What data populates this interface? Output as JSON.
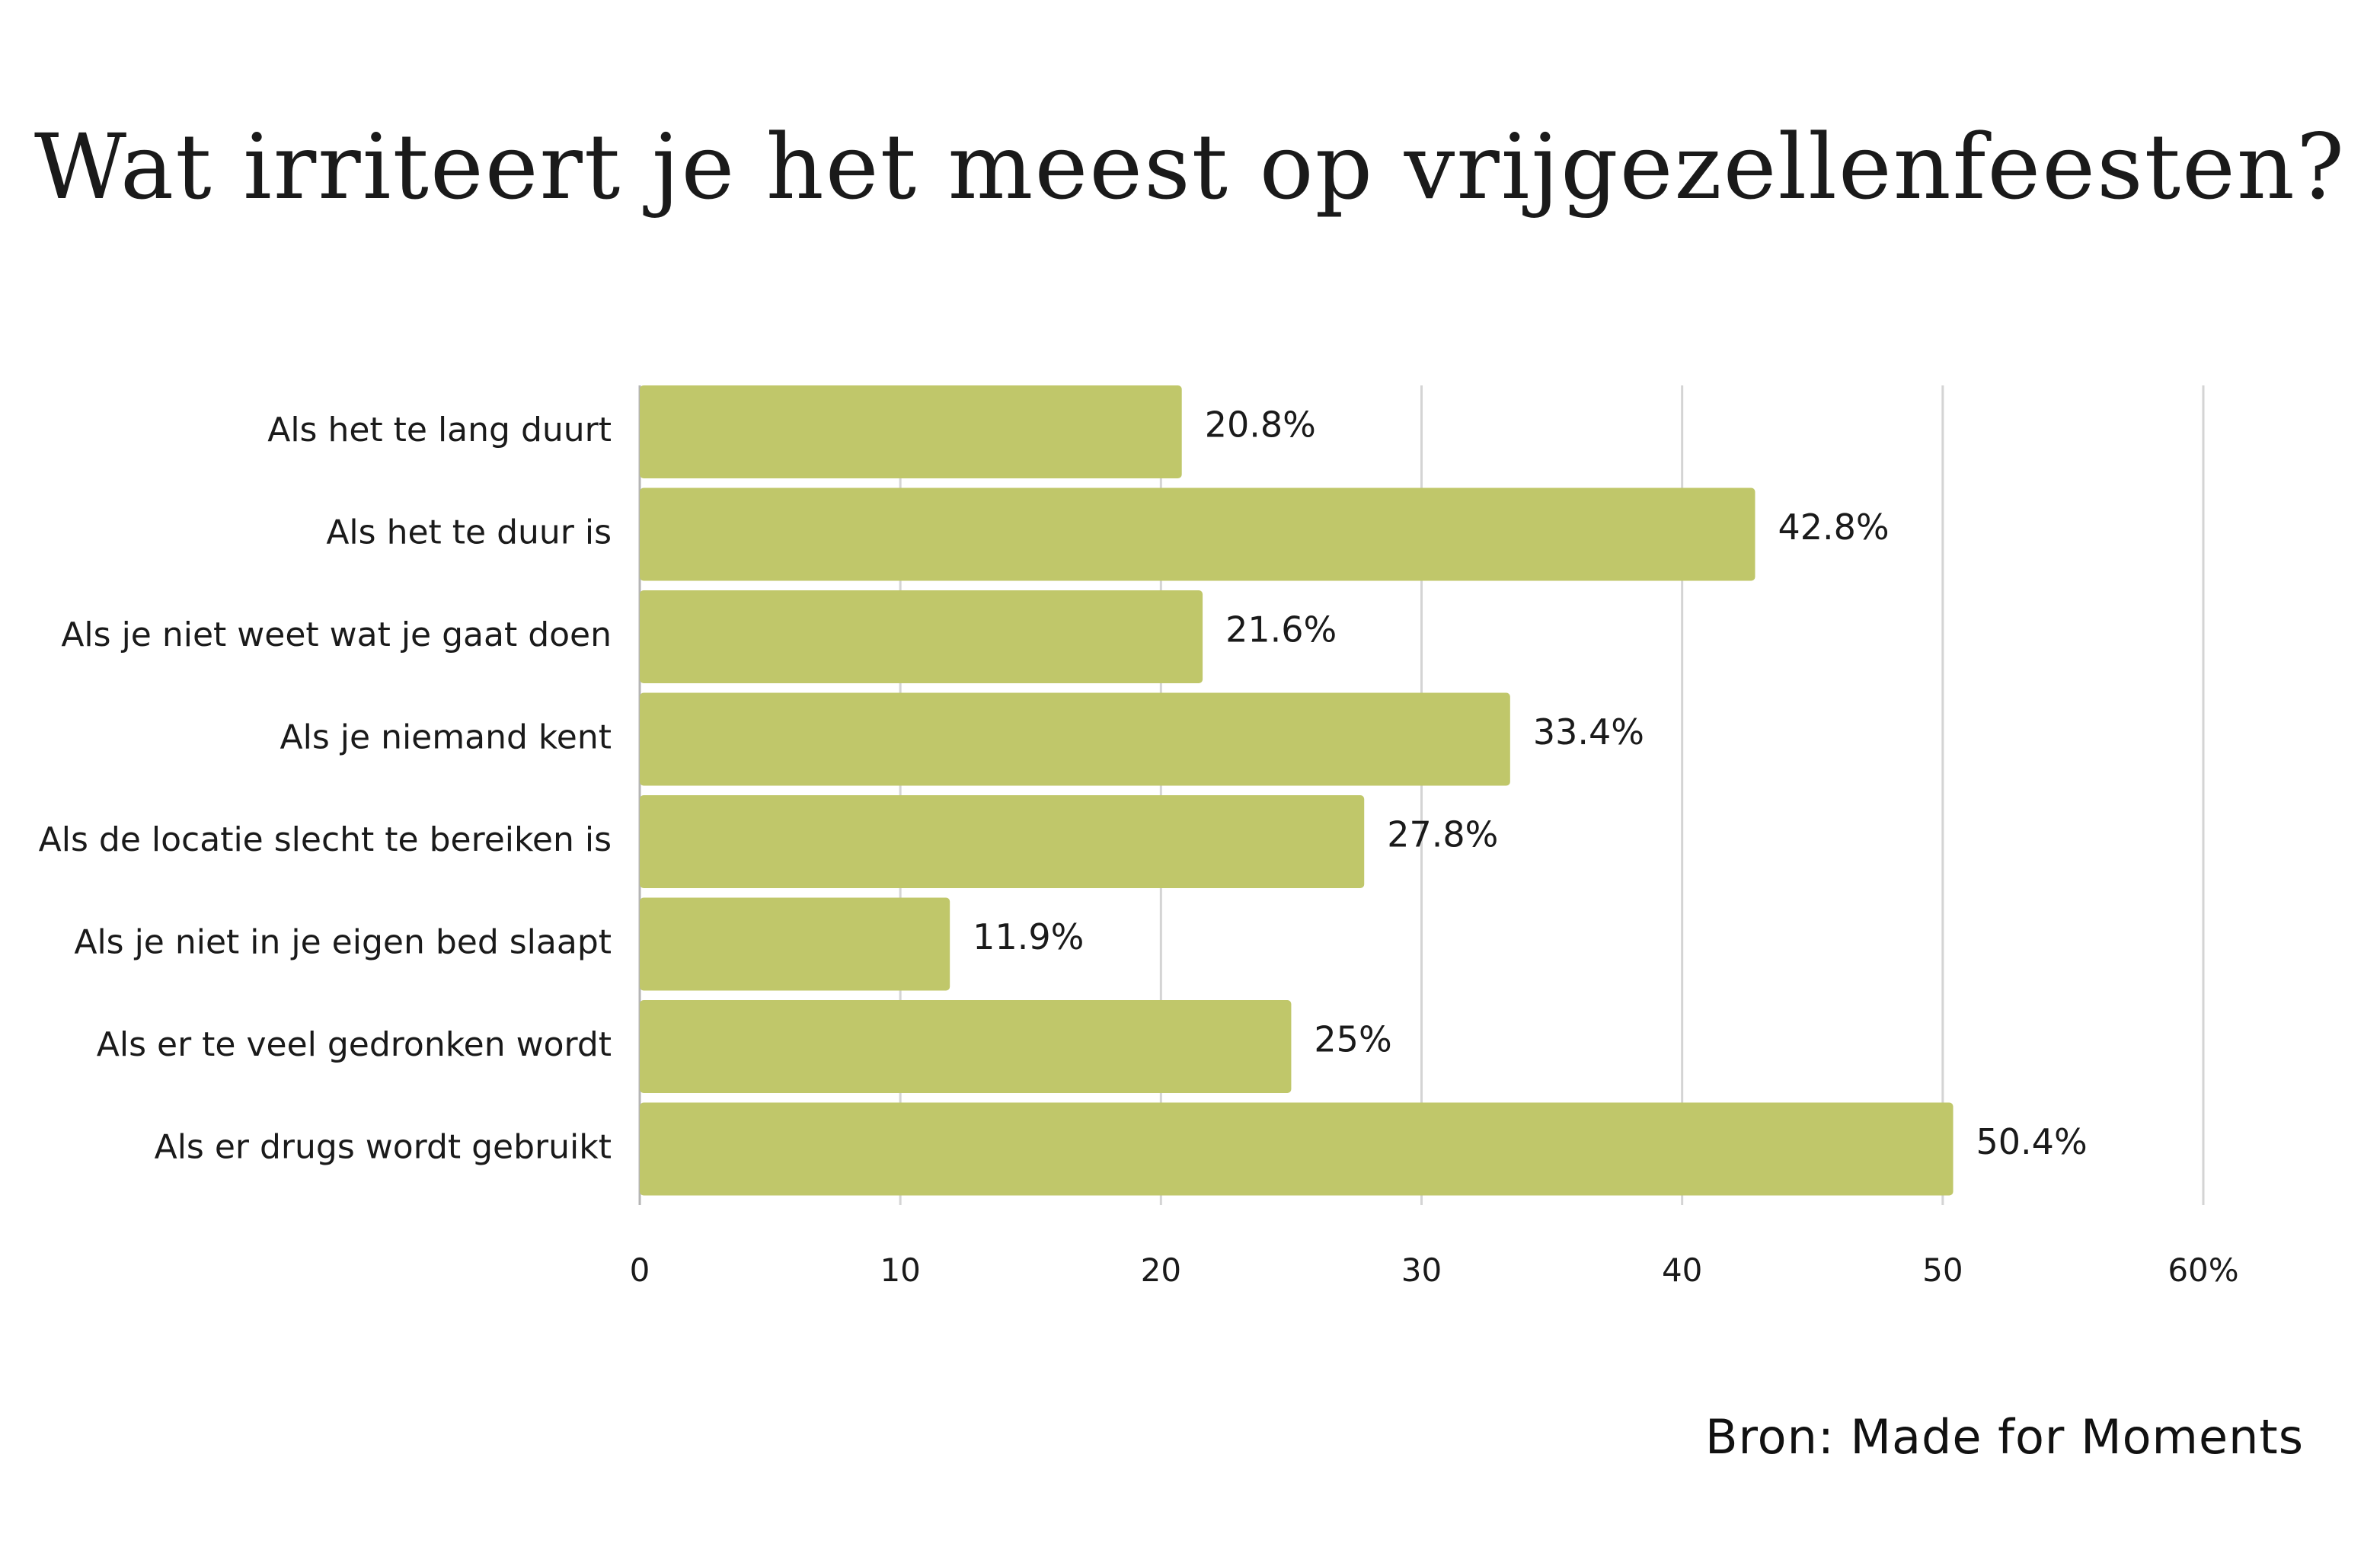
{
  "chart_data": {
    "type": "bar",
    "orientation": "horizontal",
    "title": "Wat irriteert je het meest op vrijgezellenfeesten?",
    "categories": [
      "Als het te lang duurt",
      "Als het te duur is",
      "Als je niet weet wat je gaat doen",
      "Als je niemand kent",
      "Als de locatie slecht te bereiken is",
      "Als je niet in je eigen bed slaapt",
      "Als er te veel gedronken wordt",
      "Als er drugs wordt gebruikt"
    ],
    "values": [
      20.8,
      42.8,
      21.6,
      33.4,
      27.8,
      11.9,
      25,
      50.4
    ],
    "value_labels": [
      "20.8%",
      "42.8%",
      "21.6%",
      "33.4%",
      "27.8%",
      "11.9%",
      "25%",
      "50.4%"
    ],
    "xlim": [
      0,
      60
    ],
    "x_ticks": [
      0,
      10,
      20,
      30,
      40,
      50,
      60
    ],
    "x_tick_labels": [
      "0",
      "10",
      "20",
      "30",
      "40",
      "50",
      "60%"
    ],
    "grid": "vertical",
    "bar_color": "#c0c76a",
    "grid_color": "#d4d4d4"
  },
  "source": "Bron: Made for Moments"
}
